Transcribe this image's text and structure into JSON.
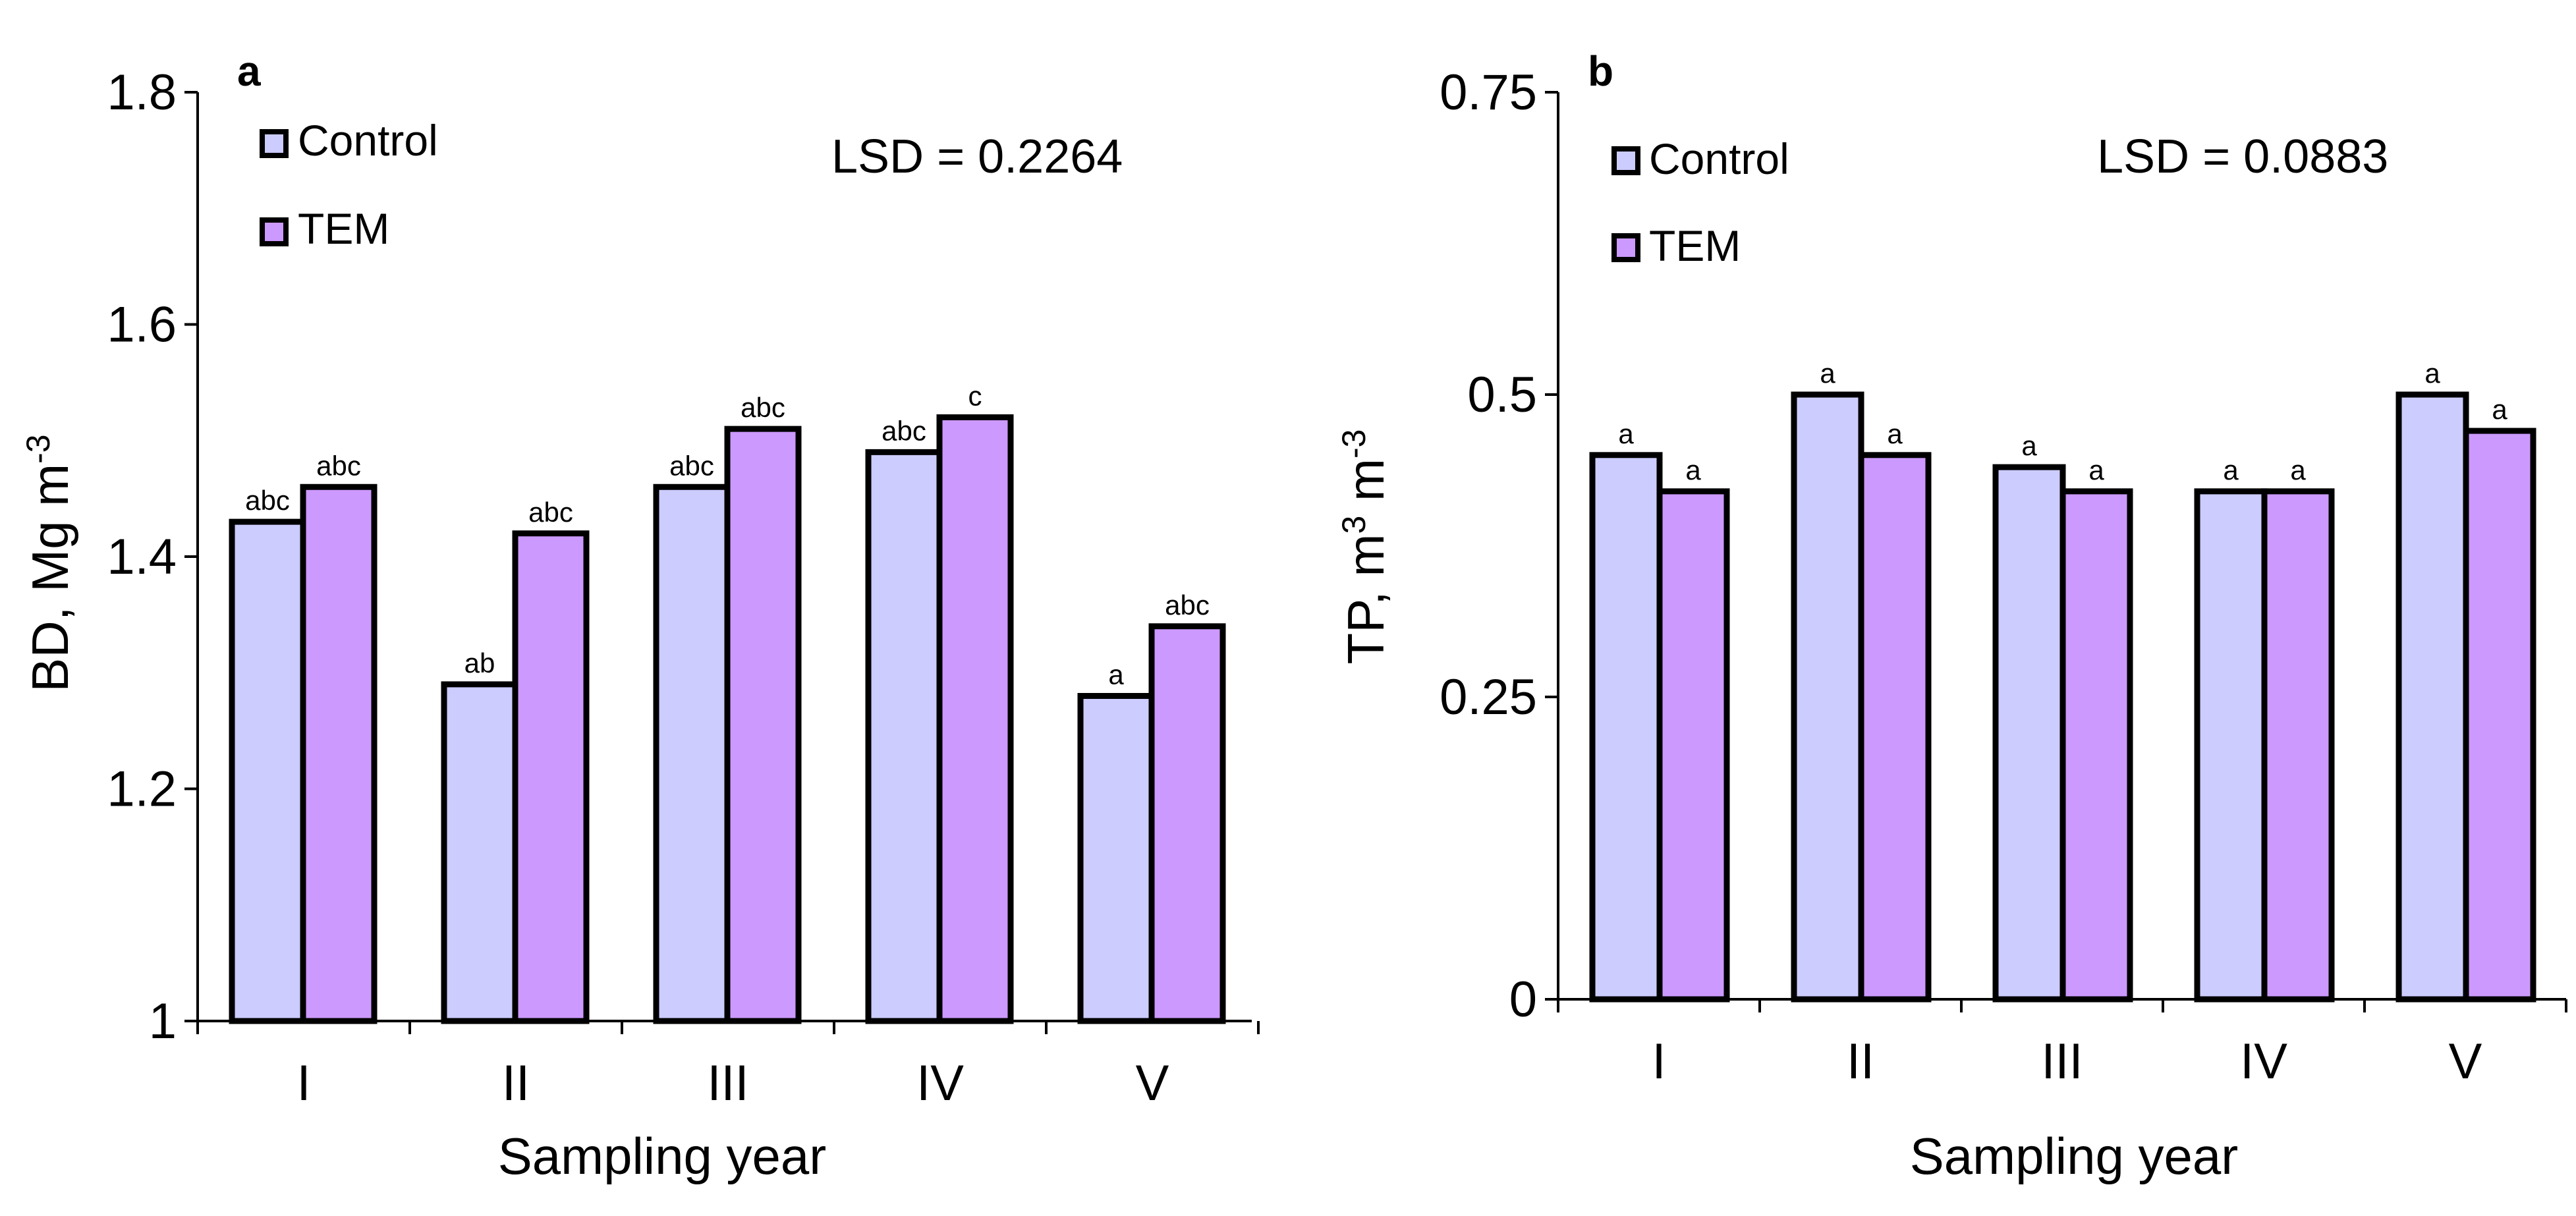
{
  "colors": {
    "control": "#ccccff",
    "tem": "#cc99ff",
    "stroke": "#000000"
  },
  "chart_data": [
    {
      "type": "bar",
      "panel_label": "a",
      "categories": [
        "I",
        "II",
        "III",
        "IV",
        "V"
      ],
      "series": [
        {
          "name": "Control",
          "values": [
            1.43,
            1.29,
            1.46,
            1.49,
            1.28
          ],
          "labels": [
            "abc",
            "ab",
            "abc",
            "abc",
            "a"
          ]
        },
        {
          "name": "TEM",
          "values": [
            1.46,
            1.42,
            1.51,
            1.52,
            1.34
          ],
          "labels": [
            "abc",
            "abc",
            "abc",
            "c",
            "abc"
          ]
        }
      ],
      "ylim": [
        1,
        1.8
      ],
      "yticks": [
        1,
        1.2,
        1.4,
        1.6,
        1.8
      ],
      "ytick_labels": [
        "1",
        "1.2",
        "1.4",
        "1.6",
        "1.8"
      ],
      "ylabel": "BD, Mg m",
      "ylabel_sup": "-3",
      "xlabel": "Sampling year",
      "annotation": "LSD = 0.2264",
      "legend": [
        "Control",
        "TEM"
      ],
      "legend_position": "top-left",
      "grid": false
    },
    {
      "type": "bar",
      "panel_label": "b",
      "categories": [
        "I",
        "II",
        "III",
        "IV",
        "V"
      ],
      "series": [
        {
          "name": "Control",
          "values": [
            0.45,
            0.5,
            0.44,
            0.42,
            0.5
          ],
          "labels": [
            "a",
            "a",
            "a",
            "a",
            "a"
          ]
        },
        {
          "name": "TEM",
          "values": [
            0.42,
            0.45,
            0.42,
            0.42,
            0.47
          ],
          "labels": [
            "a",
            "a",
            "a",
            "a",
            "a"
          ]
        }
      ],
      "ylim": [
        0,
        0.75
      ],
      "yticks": [
        0,
        0.25,
        0.5,
        0.75
      ],
      "ytick_labels": [
        "0",
        "0.25",
        "0.5",
        "0.75"
      ],
      "ylabel_parts": [
        "TP, m",
        "3",
        " m",
        "-3"
      ],
      "xlabel": "Sampling year",
      "annotation": "LSD = 0.0883",
      "legend": [
        "Control",
        "TEM"
      ],
      "legend_position": "top-left",
      "grid": false
    }
  ]
}
